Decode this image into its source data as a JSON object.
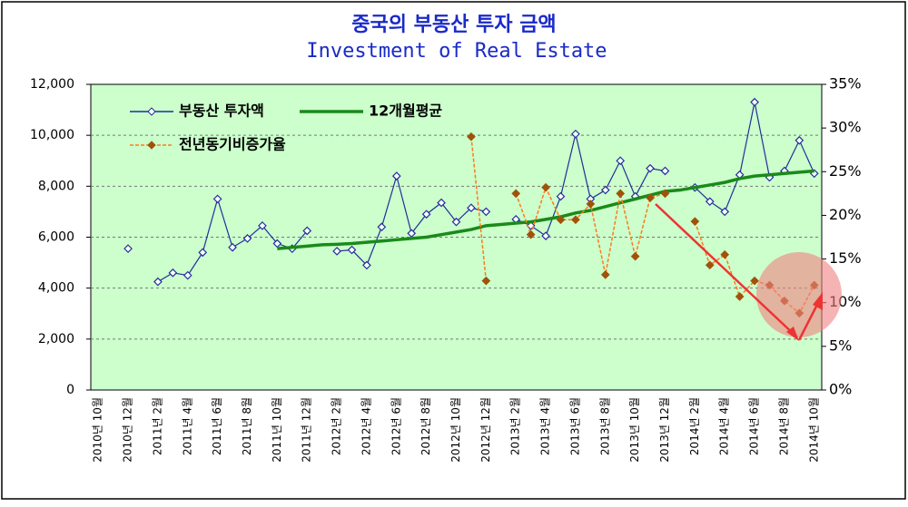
{
  "chart_data": {
    "type": "line",
    "title": "중국의 부동산 투자 금액",
    "subtitle": "Investment of Real Estate",
    "categories": [
      "2010년 10월",
      null,
      "2010년 12월",
      null,
      "2011년 2월",
      null,
      "2011년 4월",
      null,
      "2011년 6월",
      null,
      "2011년 8월",
      null,
      "2011년 10월",
      null,
      "2011년 12월",
      null,
      "2012년 2월",
      null,
      "2012년 4월",
      null,
      "2012년 6월",
      null,
      "2012년 8월",
      null,
      "2012년 10월",
      null,
      "2012년 12월",
      null,
      "2013년 2월",
      null,
      "2013년 4월",
      null,
      "2013년 6월",
      null,
      "2013년 8월",
      null,
      "2013년 10월",
      null,
      "2013년 12월",
      null,
      "2014년 2월",
      null,
      "2014년 4월",
      null,
      "2014년 6월",
      null,
      "2014년 8월",
      null,
      "2014년 10월"
    ],
    "series": [
      {
        "name": "부동산 투자액",
        "color": "#1f2f9a",
        "values": [
          null,
          null,
          5550,
          null,
          4250,
          4600,
          4500,
          5400,
          7500,
          5600,
          5950,
          6450,
          5750,
          5550,
          6250,
          null,
          5450,
          5500,
          4900,
          6400,
          8400,
          6150,
          6900,
          7350,
          6600,
          7150,
          7000,
          null,
          6700,
          6450,
          6050,
          7600,
          10050,
          7500,
          7850,
          9000,
          7600,
          8700,
          8600,
          null,
          7950,
          7400,
          7000,
          8450,
          11300,
          8350,
          8600,
          9800,
          8500
        ]
      },
      {
        "name": "12개월평균",
        "color": "#1a8a1a",
        "values": [
          null,
          null,
          null,
          null,
          null,
          null,
          null,
          null,
          null,
          null,
          null,
          null,
          5550,
          5600,
          5650,
          5700,
          5720,
          5750,
          5800,
          5850,
          5900,
          5950,
          6000,
          6100,
          6200,
          6300,
          6450,
          6500,
          6550,
          6600,
          6700,
          6800,
          6950,
          7050,
          7200,
          7350,
          7500,
          7650,
          7800,
          7850,
          7950,
          8050,
          8150,
          8300,
          8400,
          8450,
          8500,
          8550,
          8600
        ]
      },
      {
        "name": "전년동기비증가율",
        "color": "#ff7a1a",
        "axis": "y2",
        "values": [
          null,
          null,
          null,
          null,
          null,
          null,
          null,
          null,
          null,
          null,
          null,
          null,
          null,
          null,
          null,
          null,
          null,
          null,
          null,
          null,
          null,
          null,
          null,
          null,
          null,
          29,
          12.5,
          null,
          22.5,
          17.8,
          23.2,
          19.5,
          19.5,
          21.3,
          13.2,
          22.5,
          15.3,
          22,
          22.5,
          null,
          19.3,
          14.3,
          15.5,
          10.7,
          12.5,
          12,
          10.2,
          8.8,
          12
        ]
      }
    ],
    "ylim": [
      0,
      12000
    ],
    "yticks": [
      0,
      {
        "value": 2000,
        "label": "2,000"
      },
      {
        "value": 4000,
        "label": "4,000"
      },
      {
        "value": 6000,
        "label": "6,000"
      },
      {
        "value": 8000,
        "label": "8,000"
      },
      {
        "value": 10000,
        "label": "10,000"
      },
      {
        "value": 12000,
        "label": "12,000"
      }
    ],
    "y2lim": [
      0,
      35
    ],
    "y2ticks": [
      {
        "value": 0,
        "label": "0%"
      },
      {
        "value": 5,
        "label": "5%"
      },
      {
        "value": 10,
        "label": "10%"
      },
      {
        "value": 15,
        "label": "15%"
      },
      {
        "value": 20,
        "label": "20%"
      },
      {
        "value": 25,
        "label": "25%"
      },
      {
        "value": 30,
        "label": "30%"
      },
      {
        "value": 35,
        "label": "35%"
      }
    ],
    "grid": true
  }
}
